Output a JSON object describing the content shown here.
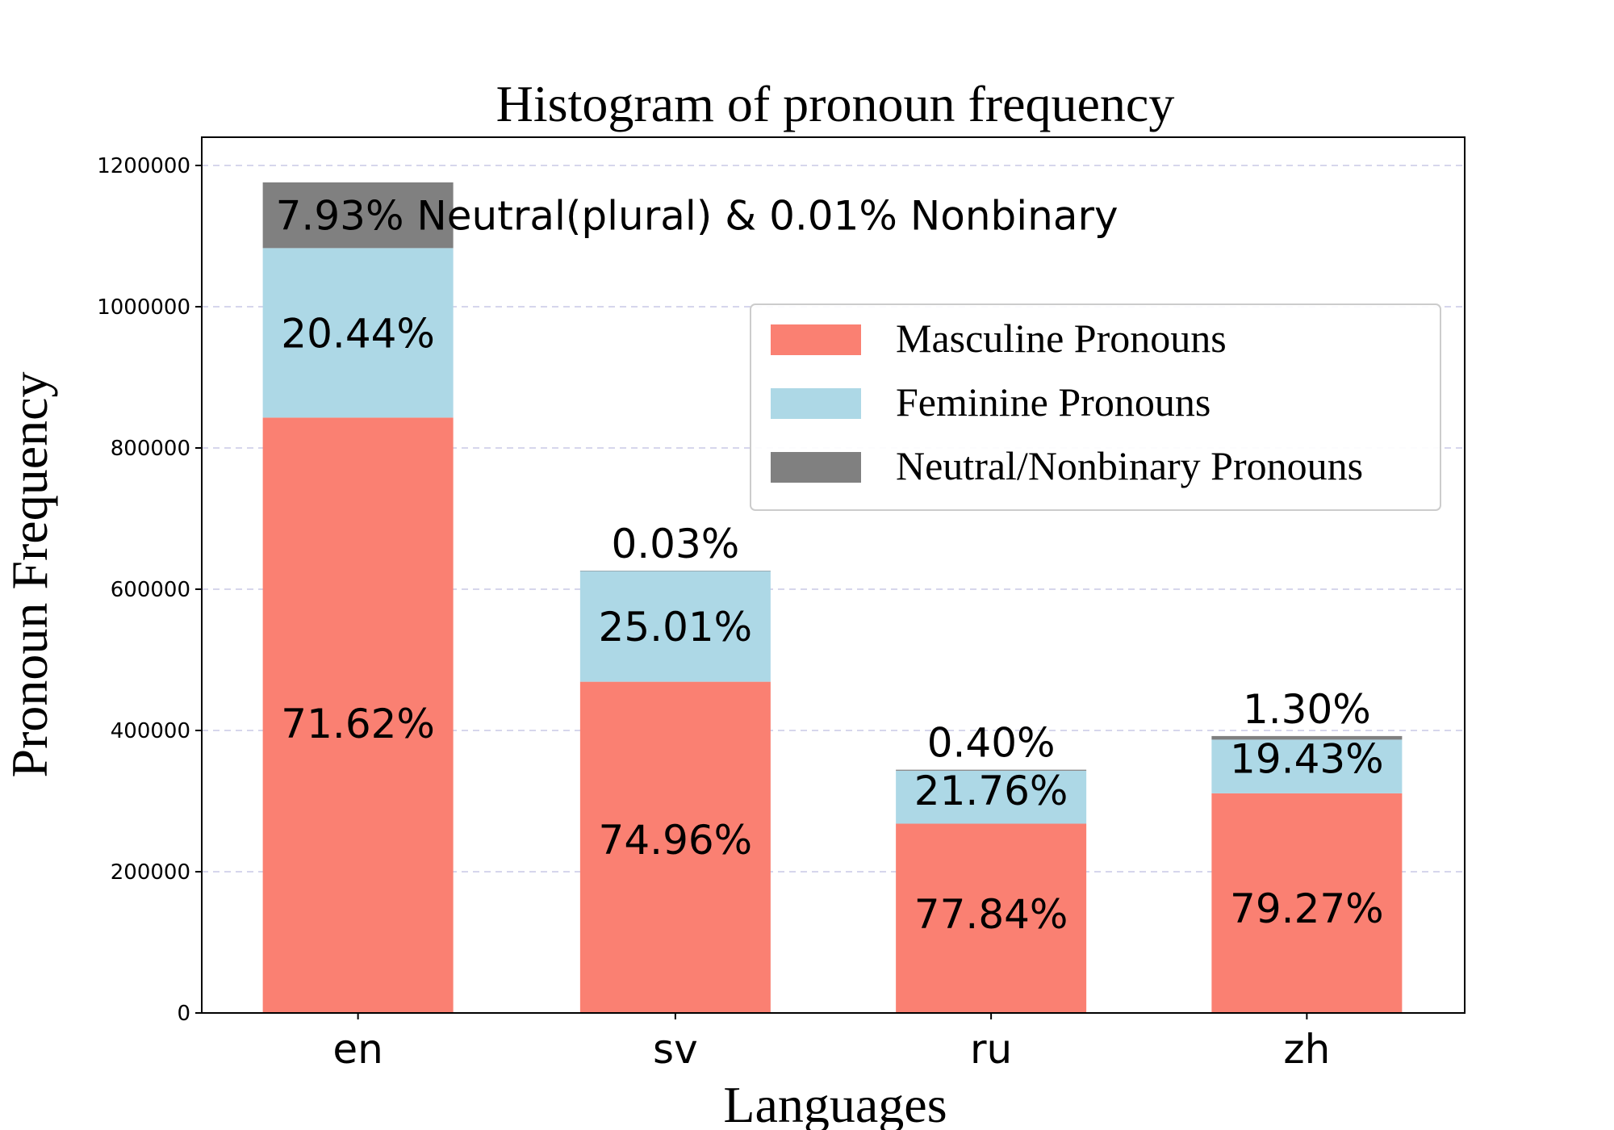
{
  "chart_data": {
    "type": "bar",
    "stacked": true,
    "title": "Histogram of pronoun frequency",
    "xlabel": "Languages",
    "ylabel": "Pronoun Frequency",
    "categories": [
      "en",
      "sv",
      "ru",
      "zh"
    ],
    "ylim": [
      0,
      1240000
    ],
    "yticks": [
      0,
      200000,
      400000,
      600000,
      800000,
      1000000,
      1200000
    ],
    "ytick_labels": [
      "0",
      "200000",
      "400000",
      "600000",
      "800000",
      "1000000",
      "1200000"
    ],
    "grid": true,
    "legend_position": "upper-right",
    "series": [
      {
        "name": "Masculine Pronouns",
        "color": "#fa8072",
        "values": [
          843000,
          469000,
          268000,
          311000
        ],
        "labels": [
          "71.62%",
          "74.96%",
          "77.84%",
          "79.27%"
        ]
      },
      {
        "name": "Feminine Pronouns",
        "color": "#add8e6",
        "values": [
          240000,
          157000,
          75000,
          76000
        ],
        "labels": [
          "20.44%",
          "25.01%",
          "21.76%",
          "19.43%"
        ]
      },
      {
        "name": "Neutral/Nonbinary Pronouns",
        "color": "#808080",
        "values": [
          93000,
          200,
          1400,
          5100
        ],
        "labels": [
          "7.93% Neutral(plural) & 0.01% Nonbinary",
          "0.03%",
          "0.40%",
          "1.30%"
        ]
      }
    ]
  }
}
